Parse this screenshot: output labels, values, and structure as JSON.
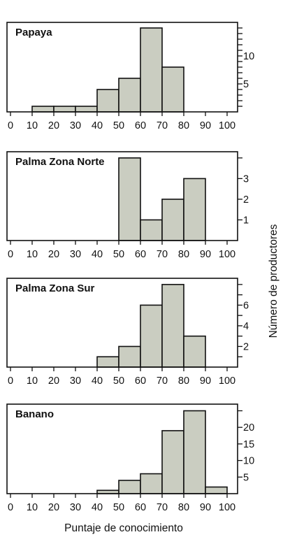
{
  "figure": {
    "xlabel": "Puntaje de conocimiento",
    "ylabel": "Número de productores"
  },
  "chart_data": [
    {
      "type": "bar",
      "title": "Papaya",
      "bins": [
        10,
        20,
        30,
        40,
        50,
        60,
        70,
        80
      ],
      "bin_width": 10,
      "values": [
        1,
        1,
        1,
        4,
        6,
        15,
        8,
        0
      ],
      "x_ticks": [
        0,
        10,
        20,
        30,
        40,
        50,
        60,
        70,
        80,
        90,
        100
      ],
      "y_ticks": [
        1,
        2,
        3,
        4,
        5,
        6,
        7,
        8,
        9,
        10,
        11,
        12,
        13,
        14,
        15
      ],
      "y_tick_labels": [
        5,
        10
      ],
      "xlim": [
        0,
        100
      ],
      "ylim": [
        0,
        16
      ]
    },
    {
      "type": "bar",
      "title": "Palma Zona Norte",
      "bins": [
        50,
        60,
        70,
        80
      ],
      "bin_width": 10,
      "values": [
        4,
        1,
        2,
        3
      ],
      "x_ticks": [
        0,
        10,
        20,
        30,
        40,
        50,
        60,
        70,
        80,
        90,
        100
      ],
      "y_ticks": [
        1,
        2,
        3,
        4
      ],
      "y_tick_labels": [
        1,
        2,
        3
      ],
      "xlim": [
        0,
        100
      ],
      "ylim": [
        0,
        4.3
      ]
    },
    {
      "type": "bar",
      "title": "Palma Zona Sur",
      "bins": [
        40,
        50,
        60,
        70,
        80
      ],
      "bin_width": 10,
      "values": [
        1,
        2,
        6,
        8,
        3
      ],
      "x_ticks": [
        0,
        10,
        20,
        30,
        40,
        50,
        60,
        70,
        80,
        90,
        100
      ],
      "y_ticks": [
        1,
        2,
        3,
        4,
        5,
        6,
        7,
        8
      ],
      "y_tick_labels": [
        2,
        4,
        6
      ],
      "xlim": [
        0,
        100
      ],
      "ylim": [
        0,
        8.6
      ]
    },
    {
      "type": "bar",
      "title": "Banano",
      "bins": [
        40,
        50,
        60,
        70,
        80,
        90
      ],
      "bin_width": 10,
      "values": [
        1,
        4,
        6,
        19,
        25,
        2
      ],
      "x_ticks": [
        0,
        10,
        20,
        30,
        40,
        50,
        60,
        70,
        80,
        90,
        100
      ],
      "y_ticks": [
        5,
        10,
        15,
        20,
        25
      ],
      "y_tick_labels": [
        5,
        10,
        15,
        20
      ],
      "xlim": [
        0,
        100
      ],
      "ylim": [
        0,
        27
      ]
    }
  ]
}
